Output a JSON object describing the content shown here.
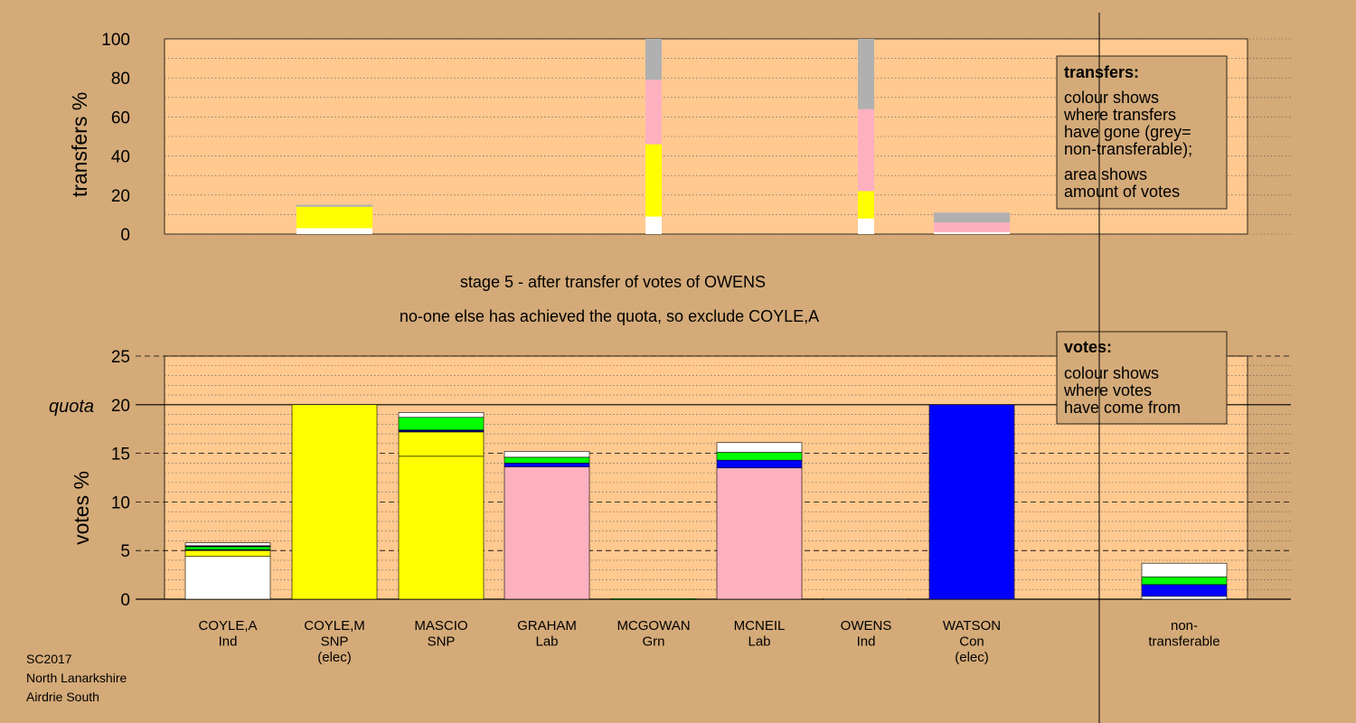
{
  "footer": {
    "line1": "SC2017",
    "line2": "North Lanarkshire",
    "line3": "Airdrie South"
  },
  "colors": {
    "background": "#d4aa78",
    "plot_area": "#ffc990",
    "white": "#ffffff",
    "yellow": "#ffff00",
    "green": "#00ff00",
    "blue": "#0000ff",
    "pink": "#fcb0c0",
    "grey": "#b0b0b0",
    "navy": "#000080"
  },
  "chart_data": [
    {
      "type": "bar",
      "ylabel": "transfers %",
      "ylim": [
        0,
        100
      ],
      "yticks": [
        0,
        20,
        40,
        60,
        80,
        100
      ],
      "legend": {
        "title": "transfers:",
        "text1": [
          "colour shows",
          "where transfers",
          "have gone (grey=",
          "non-transferable);"
        ],
        "text2": [
          "area shows",
          "amount of votes"
        ]
      },
      "bars": [
        {
          "candidate": "COYLE,M",
          "width": "wide",
          "segments": [
            {
              "color": "white",
              "value": 3
            },
            {
              "color": "yellow",
              "value": 11
            },
            {
              "color": "grey",
              "value": 1
            }
          ]
        },
        {
          "candidate": "MCGOWAN",
          "width": "narrow",
          "segments": [
            {
              "color": "white",
              "value": 9
            },
            {
              "color": "yellow",
              "value": 37
            },
            {
              "color": "pink",
              "value": 33
            },
            {
              "color": "grey",
              "value": 21
            }
          ]
        },
        {
          "candidate": "OWENS",
          "width": "narrow",
          "segments": [
            {
              "color": "white",
              "value": 8
            },
            {
              "color": "yellow",
              "value": 14
            },
            {
              "color": "pink",
              "value": 42
            },
            {
              "color": "grey",
              "value": 36
            }
          ]
        },
        {
          "candidate": "WATSON",
          "width": "wide",
          "segments": [
            {
              "color": "white",
              "value": 1
            },
            {
              "color": "pink",
              "value": 5
            },
            {
              "color": "grey",
              "value": 5
            }
          ]
        }
      ]
    },
    {
      "type": "bar",
      "title": "stage 5 - after transfer of votes of OWENS",
      "subtitle": "no-one else has achieved the quota, so exclude COYLE,A",
      "ylabel": "votes %",
      "ylim": [
        0,
        25
      ],
      "yticks": [
        0,
        5,
        10,
        15,
        20,
        25
      ],
      "quota": 20,
      "quota_label": "quota",
      "legend": {
        "title": "votes:",
        "text1": [
          "colour shows",
          "where votes",
          "have come from"
        ]
      },
      "categories": [
        {
          "name": "COYLE,A",
          "party": "Ind",
          "note": ""
        },
        {
          "name": "COYLE,M",
          "party": "SNP",
          "note": "(elec)"
        },
        {
          "name": "MASCIO",
          "party": "SNP",
          "note": ""
        },
        {
          "name": "GRAHAM",
          "party": "Lab",
          "note": ""
        },
        {
          "name": "MCGOWAN",
          "party": "Grn",
          "note": ""
        },
        {
          "name": "MCNEIL",
          "party": "Lab",
          "note": ""
        },
        {
          "name": "OWENS",
          "party": "Ind",
          "note": ""
        },
        {
          "name": "WATSON",
          "party": "Con",
          "note": "(elec)"
        },
        {
          "name": "",
          "party": "",
          "note": ""
        },
        {
          "name": "non-",
          "party": "transferable",
          "note": ""
        }
      ],
      "stacks": [
        [
          {
            "color": "white",
            "value": 4.4
          },
          {
            "color": "yellow",
            "value": 0.6
          },
          {
            "color": "navy",
            "value": 0.1
          },
          {
            "color": "green",
            "value": 0.3
          },
          {
            "color": "navy",
            "value": 0.1
          },
          {
            "color": "white",
            "value": 0.3
          }
        ],
        [
          {
            "color": "yellow",
            "value": 20
          }
        ],
        [
          {
            "color": "yellow",
            "value": 14.7
          },
          {
            "color": "yellow",
            "value": 2.5
          },
          {
            "color": "navy",
            "value": 0.2
          },
          {
            "color": "green",
            "value": 1.3
          },
          {
            "color": "white",
            "value": 0.5
          }
        ],
        [
          {
            "color": "pink",
            "value": 13.6
          },
          {
            "color": "blue",
            "value": 0.4
          },
          {
            "color": "green",
            "value": 0.6
          },
          {
            "color": "white",
            "value": 0.6
          }
        ],
        [
          {
            "color": "green",
            "value": 0.05
          }
        ],
        [
          {
            "color": "pink",
            "value": 13.5
          },
          {
            "color": "blue",
            "value": 0.8
          },
          {
            "color": "green",
            "value": 0.8
          },
          {
            "color": "white",
            "value": 1.0
          }
        ],
        [
          {
            "color": "white",
            "value": 0.05
          }
        ],
        [
          {
            "color": "blue",
            "value": 20
          }
        ],
        [],
        [
          {
            "color": "white",
            "value": 0.3
          },
          {
            "color": "blue",
            "value": 1.2
          },
          {
            "color": "green",
            "value": 0.8
          },
          {
            "color": "white",
            "value": 1.4
          }
        ]
      ]
    }
  ]
}
